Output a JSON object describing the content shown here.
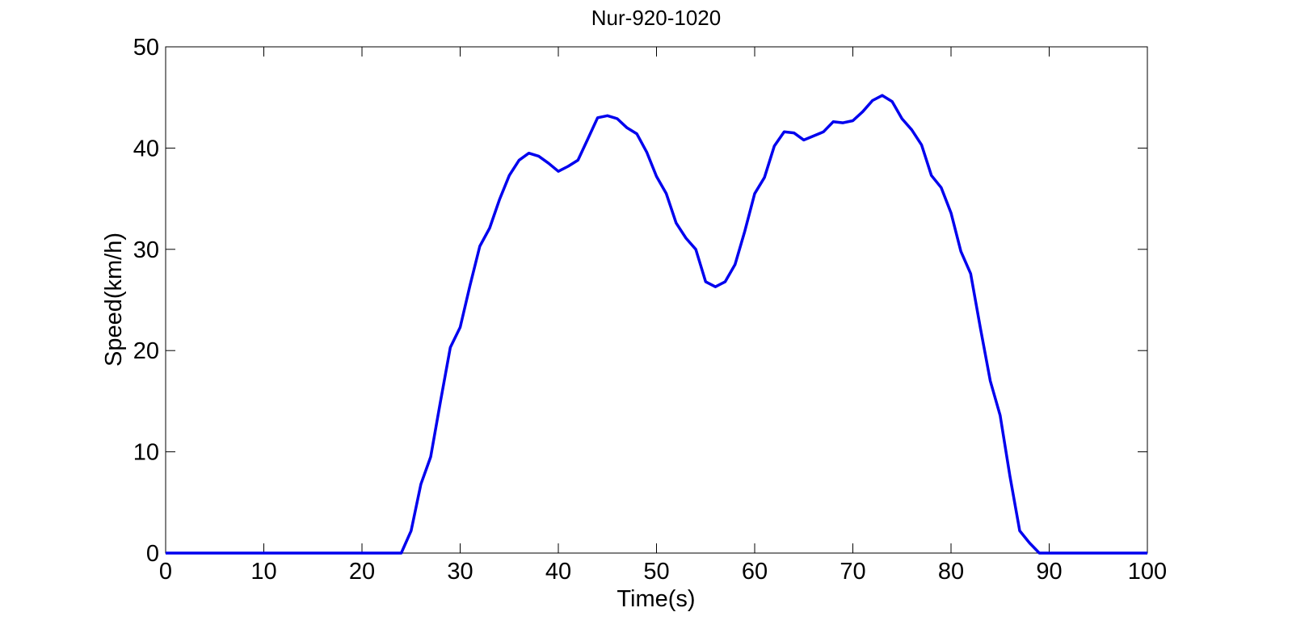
{
  "chart_data": {
    "type": "line",
    "title": "Nur-920-1020",
    "xlabel": "Time(s)",
    "ylabel": "Speed(km/h)",
    "xlim": [
      0,
      100
    ],
    "ylim": [
      0,
      50
    ],
    "xticks": [
      0,
      10,
      20,
      30,
      40,
      50,
      60,
      70,
      80,
      90,
      100
    ],
    "yticks": [
      0,
      10,
      20,
      30,
      40,
      50
    ],
    "grid": false,
    "series": [
      {
        "color": "#0000ee",
        "x": [
          0,
          24,
          25,
          26,
          27,
          28,
          29,
          30,
          31,
          32,
          33,
          34,
          35,
          36,
          37,
          38,
          39,
          40,
          41,
          42,
          43,
          44,
          45,
          46,
          47,
          48,
          49,
          50,
          51,
          52,
          53,
          54,
          55,
          56,
          57,
          58,
          59,
          60,
          61,
          62,
          63,
          64,
          65,
          66,
          67,
          68,
          69,
          70,
          71,
          72,
          73,
          74,
          75,
          76,
          77,
          78,
          79,
          80,
          81,
          82,
          83,
          84,
          85,
          86,
          87,
          88,
          89,
          100
        ],
        "y": [
          0,
          0,
          2.2,
          6.8,
          9.5,
          15,
          20.3,
          22.3,
          26.4,
          30.3,
          32.1,
          34.9,
          37.3,
          38.8,
          39.5,
          39.2,
          38.5,
          37.7,
          38.2,
          38.8,
          40.9,
          43.0,
          43.2,
          42.9,
          42.0,
          41.4,
          39.6,
          37.2,
          35.5,
          32.6,
          31.1,
          30.0,
          26.8,
          26.3,
          26.8,
          28.5,
          31.8,
          35.5,
          37.1,
          40.2,
          41.6,
          41.5,
          40.8,
          41.2,
          41.6,
          42.6,
          42.5,
          42.7,
          43.6,
          44.7,
          45.2,
          44.6,
          42.9,
          41.8,
          40.3,
          37.3,
          36.1,
          33.6,
          29.8,
          27.6,
          22.2,
          17.0,
          13.6,
          7.6,
          2.2,
          1.0,
          0,
          0
        ]
      }
    ]
  }
}
